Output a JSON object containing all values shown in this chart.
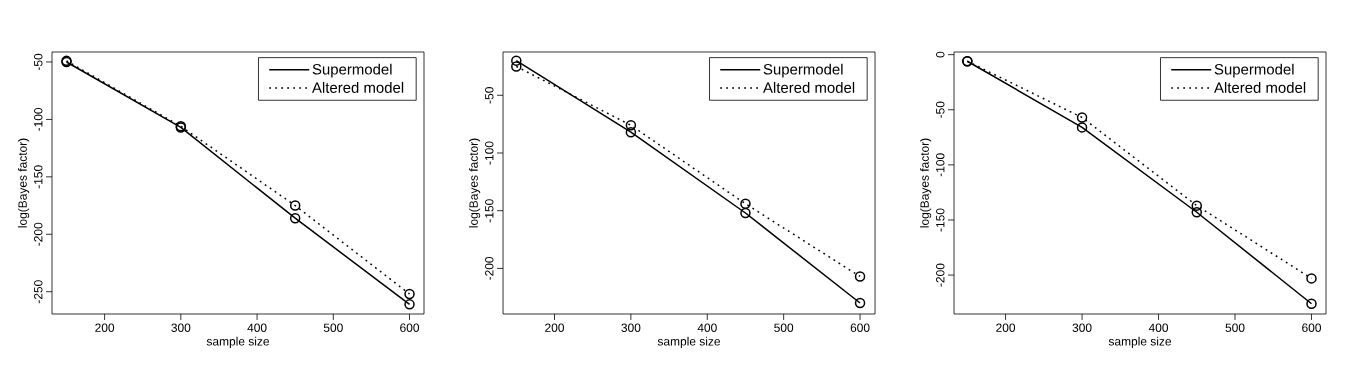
{
  "chart_data": [
    {
      "type": "line",
      "xlabel": "sample size",
      "ylabel": "log(Bayes factor)",
      "x": [
        150,
        300,
        450,
        600
      ],
      "xlim": [
        131,
        619
      ],
      "ylim": [
        -269.4,
        -41.3
      ],
      "xticks": [
        200,
        300,
        400,
        500,
        600
      ],
      "yticks": [
        -250,
        -200,
        -150,
        -100,
        -50
      ],
      "marker": "circle",
      "legend": "top right",
      "grid": false,
      "series": [
        {
          "name": "Supermodel",
          "color": "#000000",
          "line_style": "solid",
          "values": [
            -50,
            -107,
            -186,
            -261
          ]
        },
        {
          "name": "Altered model",
          "color": "#000000",
          "line_style": "dotted",
          "values": [
            -49,
            -106,
            -175,
            -252
          ]
        }
      ]
    },
    {
      "type": "line",
      "xlabel": "sample size",
      "ylabel": "log(Bayes factor)",
      "x": [
        150,
        300,
        450,
        600
      ],
      "xlim": [
        132.6,
        619.6
      ],
      "ylim": [
        -239.5,
        -12.5
      ],
      "xticks": [
        200,
        300,
        400,
        500,
        600
      ],
      "yticks": [
        -200,
        -150,
        -100,
        -50
      ],
      "marker": "circle",
      "legend": "top right",
      "grid": false,
      "series": [
        {
          "name": "Supermodel",
          "color": "#000000",
          "line_style": "solid",
          "values": [
            -20,
            -82,
            -152,
            -230
          ]
        },
        {
          "name": "Altered model",
          "color": "#000000",
          "line_style": "dotted",
          "values": [
            -25,
            -76,
            -144,
            -207
          ]
        }
      ]
    },
    {
      "type": "line",
      "xlabel": "sample size",
      "ylabel": "log(Bayes factor)",
      "x": [
        150,
        300,
        450,
        600
      ],
      "xlim": [
        132.6,
        619
      ],
      "ylim": [
        -235.3,
        2.4
      ],
      "xticks": [
        200,
        300,
        400,
        500,
        600
      ],
      "yticks": [
        -200,
        -150,
        -100,
        -50,
        0
      ],
      "marker": "circle",
      "legend": "top right",
      "grid": false,
      "series": [
        {
          "name": "Supermodel",
          "color": "#000000",
          "line_style": "solid",
          "values": [
            -6,
            -66,
            -143,
            -226
          ]
        },
        {
          "name": "Altered model",
          "color": "#000000",
          "line_style": "dotted",
          "values": [
            -6,
            -57,
            -137,
            -203
          ]
        }
      ]
    }
  ]
}
